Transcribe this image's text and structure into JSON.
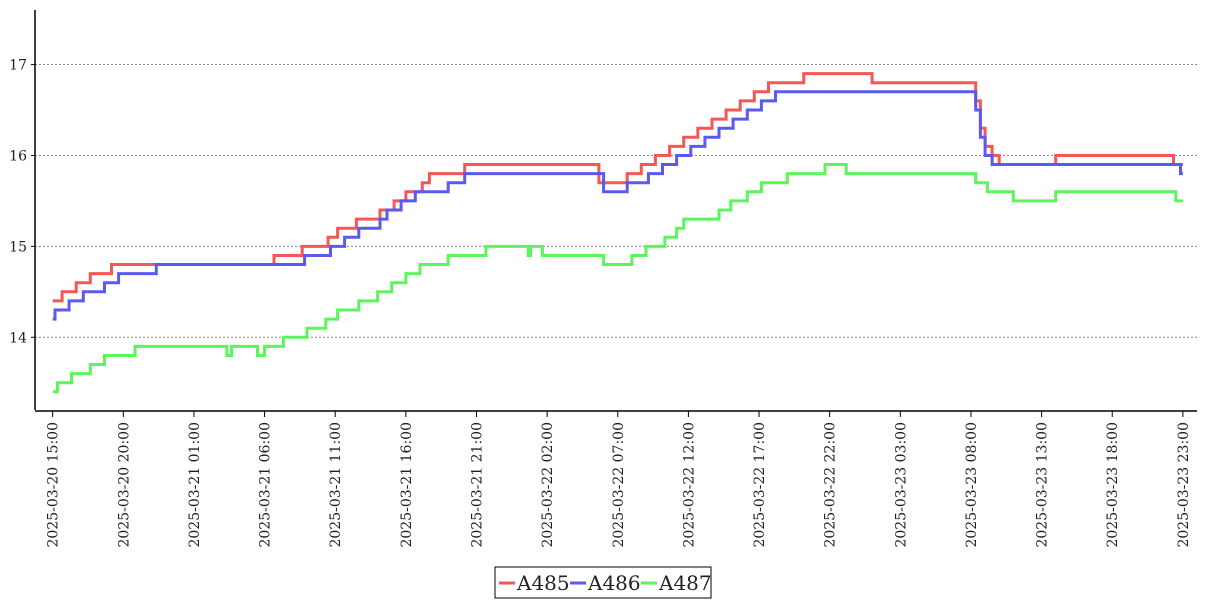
{
  "chart_data": {
    "type": "line",
    "title": "",
    "xlabel": "",
    "ylabel": "",
    "x_ticks": [
      "2025-03-20 15:00",
      "2025-03-20 20:00",
      "2025-03-21 01:00",
      "2025-03-21 06:00",
      "2025-03-21 11:00",
      "2025-03-21 16:00",
      "2025-03-21 21:00",
      "2025-03-22 02:00",
      "2025-03-22 07:00",
      "2025-03-22 12:00",
      "2025-03-22 17:00",
      "2025-03-22 22:00",
      "2025-03-23 03:00",
      "2025-03-23 08:00",
      "2025-03-23 13:00",
      "2025-03-23 18:00",
      "2025-03-23 23:00"
    ],
    "y_ticks": [
      14,
      15,
      16,
      17
    ],
    "ylim": [
      13.2,
      17.6
    ],
    "xlim": [
      "2025-03-20 13:45",
      "2025-03-24 00:00"
    ],
    "grid": "horizontal dotted",
    "legend_position": "bottom-center",
    "series": [
      {
        "name": "A485",
        "color": "#f55656",
        "points": [
          [
            "2025-03-20 15:00",
            14.4
          ],
          [
            "2025-03-20 15:40",
            14.5
          ],
          [
            "2025-03-20 16:40",
            14.6
          ],
          [
            "2025-03-20 17:40",
            14.7
          ],
          [
            "2025-03-20 19:10",
            14.8
          ],
          [
            "2025-03-20 22:00",
            14.8
          ],
          [
            "2025-03-21 00:00",
            14.8
          ],
          [
            "2025-03-21 06:00",
            14.8
          ],
          [
            "2025-03-21 06:40",
            14.9
          ],
          [
            "2025-03-21 08:40",
            15.0
          ],
          [
            "2025-03-21 10:30",
            15.1
          ],
          [
            "2025-03-21 11:10",
            15.2
          ],
          [
            "2025-03-21 12:30",
            15.3
          ],
          [
            "2025-03-21 14:10",
            15.4
          ],
          [
            "2025-03-21 15:10",
            15.5
          ],
          [
            "2025-03-21 16:00",
            15.6
          ],
          [
            "2025-03-21 17:10",
            15.7
          ],
          [
            "2025-03-21 17:40",
            15.8
          ],
          [
            "2025-03-21 20:10",
            15.9
          ],
          [
            "2025-03-22 00:00",
            15.9
          ],
          [
            "2025-03-22 03:10",
            15.9
          ],
          [
            "2025-03-22 05:40",
            15.7
          ],
          [
            "2025-03-22 07:40",
            15.8
          ],
          [
            "2025-03-22 08:40",
            15.9
          ],
          [
            "2025-03-22 09:40",
            16.0
          ],
          [
            "2025-03-22 10:40",
            16.1
          ],
          [
            "2025-03-22 11:40",
            16.2
          ],
          [
            "2025-03-22 12:40",
            16.3
          ],
          [
            "2025-03-22 13:40",
            16.4
          ],
          [
            "2025-03-22 14:40",
            16.5
          ],
          [
            "2025-03-22 15:40",
            16.6
          ],
          [
            "2025-03-22 16:40",
            16.7
          ],
          [
            "2025-03-22 17:40",
            16.8
          ],
          [
            "2025-03-22 20:10",
            16.9
          ],
          [
            "2025-03-23 00:30",
            16.9
          ],
          [
            "2025-03-23 01:00",
            16.8
          ],
          [
            "2025-03-23 08:00",
            16.8
          ],
          [
            "2025-03-23 08:20",
            16.6
          ],
          [
            "2025-03-23 08:40",
            16.3
          ],
          [
            "2025-03-23 09:00",
            16.1
          ],
          [
            "2025-03-23 09:30",
            16.0
          ],
          [
            "2025-03-23 10:00",
            15.9
          ],
          [
            "2025-03-23 14:00",
            16.0
          ],
          [
            "2025-03-23 22:10",
            16.0
          ],
          [
            "2025-03-23 22:20",
            15.9
          ],
          [
            "2025-03-23 23:00",
            15.9
          ]
        ]
      },
      {
        "name": "A486",
        "color": "#5a5aee",
        "points": [
          [
            "2025-03-20 15:00",
            14.2
          ],
          [
            "2025-03-20 15:10",
            14.3
          ],
          [
            "2025-03-20 16:10",
            14.4
          ],
          [
            "2025-03-20 17:10",
            14.5
          ],
          [
            "2025-03-20 18:40",
            14.6
          ],
          [
            "2025-03-20 19:40",
            14.7
          ],
          [
            "2025-03-20 22:00",
            14.7
          ],
          [
            "2025-03-20 22:20",
            14.8
          ],
          [
            "2025-03-21 06:00",
            14.8
          ],
          [
            "2025-03-21 08:40",
            14.8
          ],
          [
            "2025-03-21 08:50",
            14.9
          ],
          [
            "2025-03-21 10:40",
            15.0
          ],
          [
            "2025-03-21 11:40",
            15.1
          ],
          [
            "2025-03-21 12:40",
            15.2
          ],
          [
            "2025-03-21 14:10",
            15.3
          ],
          [
            "2025-03-21 14:40",
            15.4
          ],
          [
            "2025-03-21 15:40",
            15.5
          ],
          [
            "2025-03-21 16:40",
            15.6
          ],
          [
            "2025-03-21 19:00",
            15.7
          ],
          [
            "2025-03-21 20:10",
            15.8
          ],
          [
            "2025-03-22 00:00",
            15.8
          ],
          [
            "2025-03-22 05:40",
            15.8
          ],
          [
            "2025-03-22 06:00",
            15.6
          ],
          [
            "2025-03-22 07:40",
            15.7
          ],
          [
            "2025-03-22 09:10",
            15.8
          ],
          [
            "2025-03-22 10:10",
            15.9
          ],
          [
            "2025-03-22 11:10",
            16.0
          ],
          [
            "2025-03-22 12:10",
            16.1
          ],
          [
            "2025-03-22 13:10",
            16.2
          ],
          [
            "2025-03-22 14:10",
            16.3
          ],
          [
            "2025-03-22 15:10",
            16.4
          ],
          [
            "2025-03-22 16:10",
            16.5
          ],
          [
            "2025-03-22 17:10",
            16.6
          ],
          [
            "2025-03-22 18:10",
            16.7
          ],
          [
            "2025-03-23 08:00",
            16.7
          ],
          [
            "2025-03-23 08:20",
            16.5
          ],
          [
            "2025-03-23 08:40",
            16.2
          ],
          [
            "2025-03-23 09:00",
            16.0
          ],
          [
            "2025-03-23 09:30",
            15.9
          ],
          [
            "2025-03-23 22:40",
            15.9
          ],
          [
            "2025-03-23 22:50",
            15.8
          ],
          [
            "2025-03-23 23:00",
            15.8
          ]
        ]
      },
      {
        "name": "A487",
        "color": "#5cf55c",
        "points": [
          [
            "2025-03-20 15:00",
            13.4
          ],
          [
            "2025-03-20 15:20",
            13.5
          ],
          [
            "2025-03-20 16:20",
            13.6
          ],
          [
            "2025-03-20 17:40",
            13.7
          ],
          [
            "2025-03-20 18:40",
            13.8
          ],
          [
            "2025-03-20 20:50",
            13.9
          ],
          [
            "2025-03-21 03:00",
            13.9
          ],
          [
            "2025-03-21 03:20",
            13.8
          ],
          [
            "2025-03-21 03:40",
            13.9
          ],
          [
            "2025-03-21 05:30",
            13.8
          ],
          [
            "2025-03-21 06:00",
            13.9
          ],
          [
            "2025-03-21 07:00",
            13.9
          ],
          [
            "2025-03-21 07:20",
            14.0
          ],
          [
            "2025-03-21 08:30",
            14.0
          ],
          [
            "2025-03-21 09:00",
            14.1
          ],
          [
            "2025-03-21 10:20",
            14.2
          ],
          [
            "2025-03-21 11:10",
            14.3
          ],
          [
            "2025-03-21 12:40",
            14.4
          ],
          [
            "2025-03-21 14:00",
            14.5
          ],
          [
            "2025-03-21 15:00",
            14.6
          ],
          [
            "2025-03-21 16:00",
            14.7
          ],
          [
            "2025-03-21 17:00",
            14.8
          ],
          [
            "2025-03-21 19:00",
            14.9
          ],
          [
            "2025-03-21 21:30",
            14.9
          ],
          [
            "2025-03-21 21:40",
            15.0
          ],
          [
            "2025-03-22 00:30",
            15.0
          ],
          [
            "2025-03-22 00:40",
            14.9
          ],
          [
            "2025-03-22 00:50",
            15.0
          ],
          [
            "2025-03-22 01:40",
            14.9
          ],
          [
            "2025-03-22 05:50",
            14.9
          ],
          [
            "2025-03-22 06:00",
            14.8
          ],
          [
            "2025-03-22 08:00",
            14.9
          ],
          [
            "2025-03-22 09:00",
            15.0
          ],
          [
            "2025-03-22 10:20",
            15.1
          ],
          [
            "2025-03-22 11:10",
            15.2
          ],
          [
            "2025-03-22 11:40",
            15.3
          ],
          [
            "2025-03-22 14:10",
            15.4
          ],
          [
            "2025-03-22 15:00",
            15.5
          ],
          [
            "2025-03-22 16:10",
            15.6
          ],
          [
            "2025-03-22 17:10",
            15.7
          ],
          [
            "2025-03-22 19:00",
            15.8
          ],
          [
            "2025-03-22 21:40",
            15.9
          ],
          [
            "2025-03-22 23:10",
            15.8
          ],
          [
            "2025-03-23 08:00",
            15.8
          ],
          [
            "2025-03-23 08:20",
            15.7
          ],
          [
            "2025-03-23 09:10",
            15.6
          ],
          [
            "2025-03-23 11:00",
            15.5
          ],
          [
            "2025-03-23 14:00",
            15.6
          ],
          [
            "2025-03-23 22:00",
            15.6
          ],
          [
            "2025-03-23 22:30",
            15.5
          ],
          [
            "2025-03-23 23:00",
            15.5
          ]
        ]
      }
    ]
  }
}
